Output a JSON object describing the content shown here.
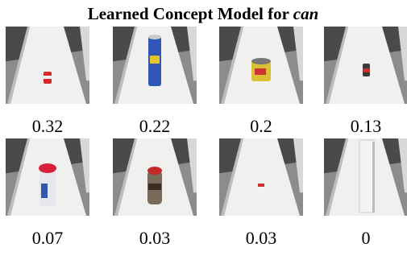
{
  "title": {
    "prefix": "Learned Concept Model for",
    "emphasis": "can"
  },
  "items": [
    {
      "score": 0.32
    },
    {
      "score": 0.22
    },
    {
      "score": 0.2
    },
    {
      "score": 0.13
    },
    {
      "score": 0.07
    },
    {
      "score": 0.03
    },
    {
      "score": 0.03
    },
    {
      "score": 0
    }
  ]
}
